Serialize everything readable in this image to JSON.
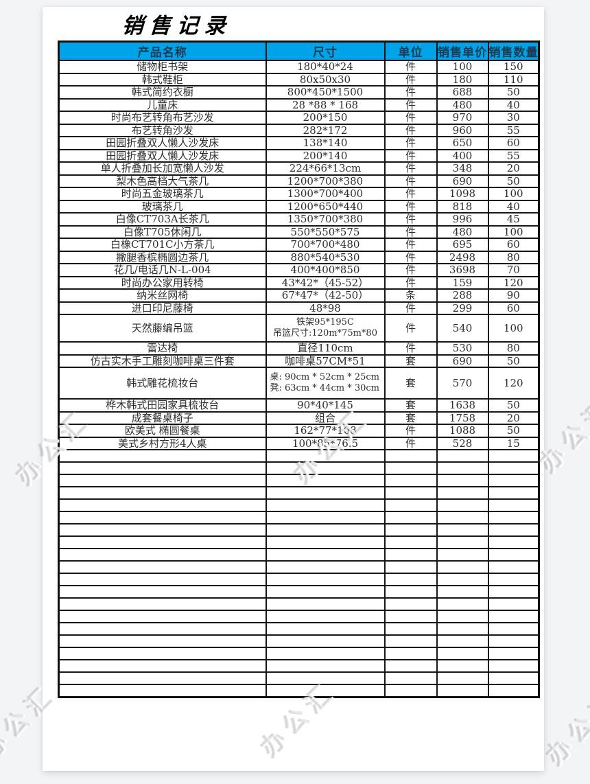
{
  "page": {
    "title": "销售记录",
    "watermark_text": "办公汇",
    "colors": {
      "canvas_background": "#f3f4f6",
      "page_background": "#ffffff",
      "header_background": "#00A3E8",
      "header_text": "#1b3b52",
      "grid_border": "#161616"
    }
  },
  "table": {
    "columns": [
      "产品名称",
      "尺寸",
      "单位",
      "销售单价",
      "销售数量"
    ],
    "rows": [
      {
        "name": "储物柜书架",
        "size": [
          "180*40*24"
        ],
        "unit": "件",
        "price": "100",
        "qty": "150"
      },
      {
        "name": "韩式鞋柜",
        "size": [
          "80x50x30"
        ],
        "unit": "件",
        "price": "180",
        "qty": "110"
      },
      {
        "name": "韩式简约衣橱",
        "size": [
          "800*450*1500"
        ],
        "unit": "件",
        "price": "688",
        "qty": "50"
      },
      {
        "name": "儿童床",
        "size": [
          "28 *88 * 168"
        ],
        "unit": "件",
        "price": "480",
        "qty": "40"
      },
      {
        "name": "时尚布艺转角布艺沙发",
        "size": [
          "200*150"
        ],
        "unit": "件",
        "price": "970",
        "qty": "30"
      },
      {
        "name": "布艺转角沙发",
        "size": [
          "282*172"
        ],
        "unit": "件",
        "price": "960",
        "qty": "55"
      },
      {
        "name": "田园折叠双人懒人沙发床",
        "size": [
          "138*140"
        ],
        "unit": "件",
        "price": "650",
        "qty": "60"
      },
      {
        "name": "田园折叠双人懒人沙发床",
        "size": [
          "200*140"
        ],
        "unit": "件",
        "price": "400",
        "qty": "55"
      },
      {
        "name": "单人折叠加长加宽懒人沙发",
        "size": [
          "224*66*13cm"
        ],
        "unit": "件",
        "price": "348",
        "qty": "20"
      },
      {
        "name": "梨木色高档大气茶几",
        "size": [
          "1200*700*380"
        ],
        "unit": "件",
        "price": "690",
        "qty": "50"
      },
      {
        "name": "时尚五金玻璃茶几",
        "size": [
          "1300*700*400"
        ],
        "unit": "件",
        "price": "1098",
        "qty": "100"
      },
      {
        "name": "玻璃茶几",
        "size": [
          "1200*650*440"
        ],
        "unit": "件",
        "price": "818",
        "qty": "40"
      },
      {
        "name": "白像CT703A长茶几",
        "size": [
          "1350*700*380"
        ],
        "unit": "件",
        "price": "996",
        "qty": "45"
      },
      {
        "name": "白像T705休闲几",
        "size": [
          "550*550*575"
        ],
        "unit": "件",
        "price": "480",
        "qty": "100"
      },
      {
        "name": "白橡CT701C小方茶几",
        "size": [
          "700*700*480"
        ],
        "unit": "件",
        "price": "695",
        "qty": "60"
      },
      {
        "name": "撇腿香槟椭圆边茶几",
        "size": [
          "880*540*530"
        ],
        "unit": "件",
        "price": "2498",
        "qty": "80"
      },
      {
        "name": "花几/电话几N-L-004",
        "size": [
          "400*400*850"
        ],
        "unit": "件",
        "price": "3698",
        "qty": "70"
      },
      {
        "name": "时尚办公家用转椅",
        "size": [
          "43*42*（45-52）"
        ],
        "unit": "件",
        "price": "159",
        "qty": "120"
      },
      {
        "name": "纳米丝网椅",
        "size": [
          "67*47*（42-50）"
        ],
        "unit": "条",
        "price": "288",
        "qty": "90"
      },
      {
        "name": "进口印尼藤椅",
        "size": [
          "48*98"
        ],
        "unit": "件",
        "price": "299",
        "qty": "60"
      },
      {
        "name": "天然藤编吊篮",
        "size": [
          "铁架95*195C",
          "吊篮尺寸:120m*75m*80"
        ],
        "unit": "件",
        "price": "540",
        "qty": "100"
      },
      {
        "name": "雷达椅",
        "size": [
          "直径110cm"
        ],
        "unit": "件",
        "price": "530",
        "qty": "80"
      },
      {
        "name": "仿古实木手工雕刻咖啡桌三件套",
        "size": [
          "咖啡桌57CM*51"
        ],
        "unit": "套",
        "price": "690",
        "qty": "50"
      },
      {
        "name": "韩式雕花梳妆台",
        "size": [
          "桌: 90cm * 52cm * 25cm",
          "凳: 63cm * 44cm * 30cm"
        ],
        "size_align": "left",
        "unit": "套",
        "price": "570",
        "qty": "120"
      },
      {
        "name": "桦木韩式田园家具梳妆台",
        "size": [
          "90*40*145"
        ],
        "unit": "套",
        "price": "1638",
        "qty": "50"
      },
      {
        "name": "成套餐桌椅子",
        "size": [
          "组合"
        ],
        "unit": "套",
        "price": "1758",
        "qty": "20"
      },
      {
        "name": "欧美式 椭圆餐桌",
        "size": [
          "162*77*168"
        ],
        "unit": "件",
        "price": "1088",
        "qty": "50"
      },
      {
        "name": "美式乡村方形4人桌",
        "size": [
          "100*85*76.5"
        ],
        "unit": "件",
        "price": "528",
        "qty": "15"
      }
    ],
    "empty_row_count": 20
  }
}
